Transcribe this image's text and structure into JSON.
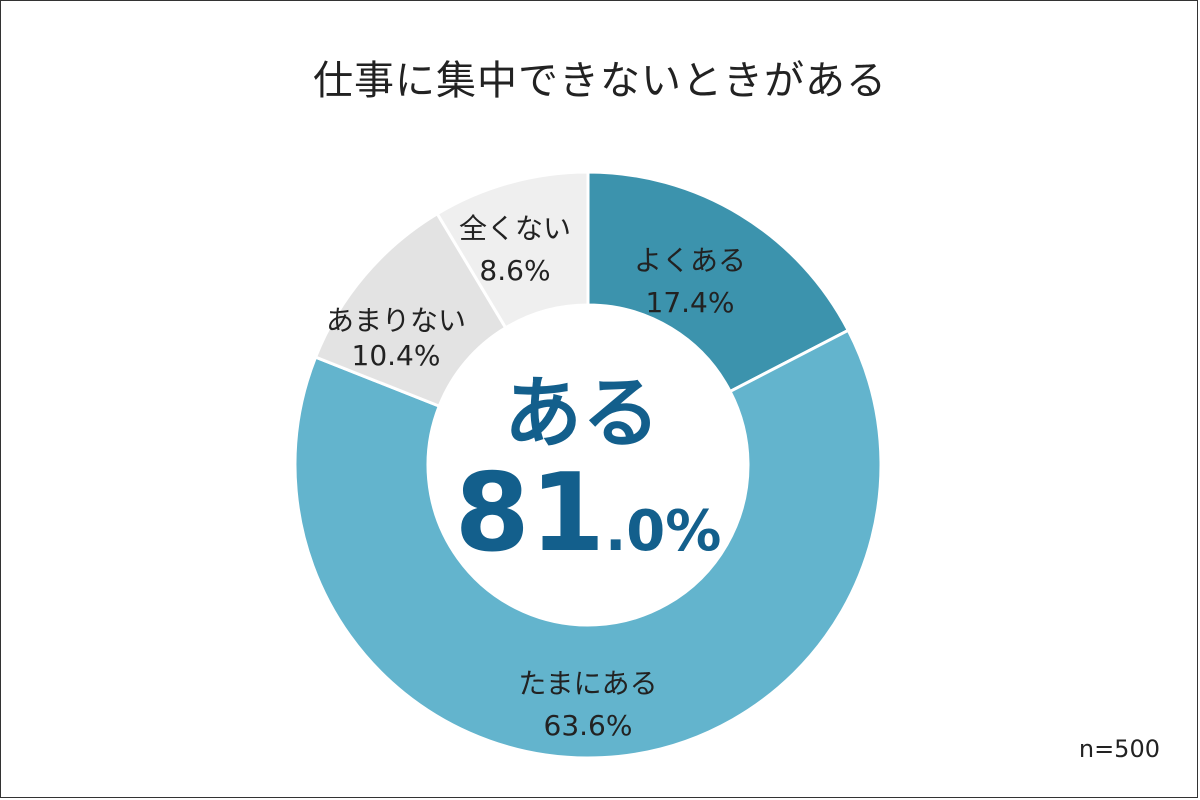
{
  "chart_data": {
    "type": "pie",
    "title": "仕事に集中できないときがある",
    "slices": [
      {
        "label": "よくある",
        "value": 17.4,
        "display": "17.4%",
        "color": "#3c93ad"
      },
      {
        "label": "たまにある",
        "value": 63.6,
        "display": "63.6%",
        "color": "#63b4cd"
      },
      {
        "label": "あまりない",
        "value": 10.4,
        "display": "10.4%",
        "color": "#e3e3e3"
      },
      {
        "label": "全くない",
        "value": 8.6,
        "display": "8.6%",
        "color": "#efefef"
      }
    ],
    "center": {
      "label": "ある",
      "value_int": "81",
      "value_dec": ".0%"
    },
    "note": "n=500",
    "center_color": "#135f8c"
  }
}
